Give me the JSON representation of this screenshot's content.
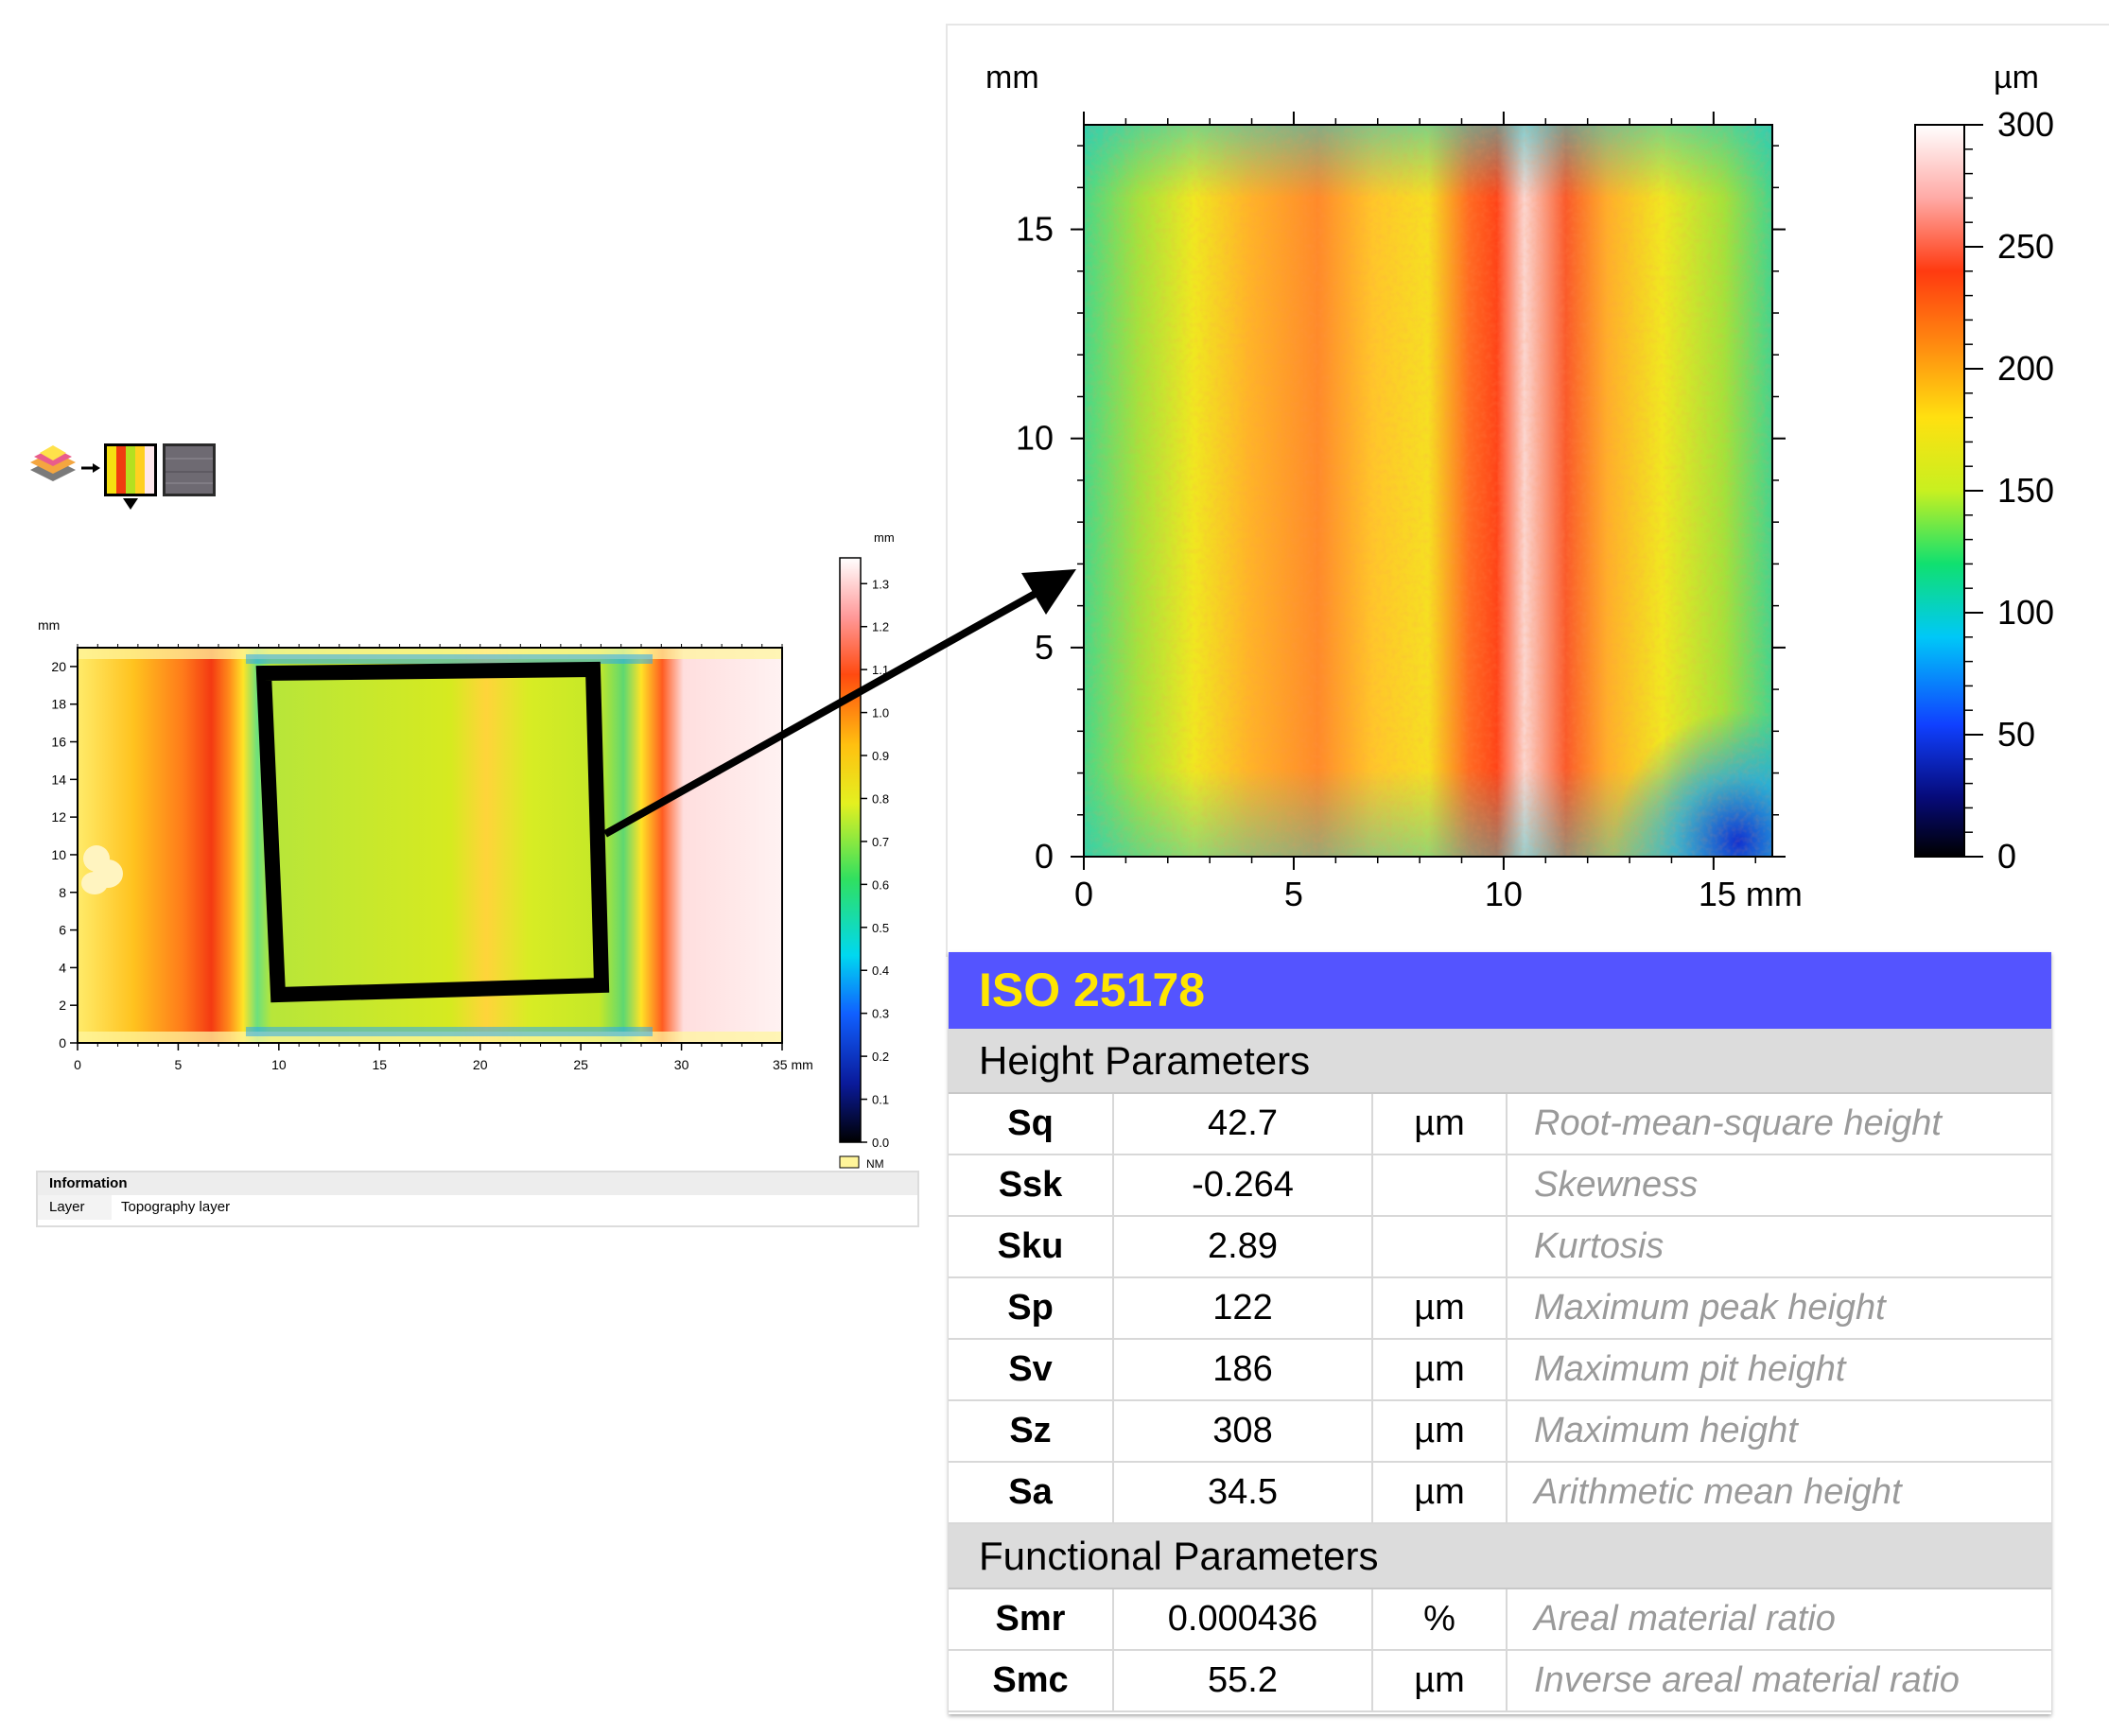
{
  "left_panel": {
    "y_unit": "mm",
    "x_ticks": [
      "0",
      "5",
      "10",
      "15",
      "20",
      "25",
      "30",
      "35 mm"
    ],
    "y_ticks": [
      "0",
      "2",
      "4",
      "6",
      "8",
      "10",
      "12",
      "14",
      "16",
      "18",
      "20"
    ],
    "colorbar": {
      "unit": "mm",
      "ticks": [
        "0.0",
        "0.1",
        "0.2",
        "0.3",
        "0.4",
        "0.5",
        "0.6",
        "0.7",
        "0.8",
        "0.9",
        "1.0",
        "1.1",
        "1.2",
        "1.3"
      ],
      "nm_label": "NM"
    },
    "info": {
      "title": "Information",
      "row_key": "Layer",
      "row_value": "Topography layer"
    },
    "toolbar_icons": [
      "layers-stack-icon",
      "arrow-right-icon",
      "colored-topography-icon",
      "grayscale-image-icon",
      "dropdown-caret-icon"
    ]
  },
  "main_plot": {
    "y_unit": "mm",
    "x_ticks": [
      "0",
      "5",
      "10",
      "15 mm"
    ],
    "y_ticks": [
      "0",
      "5",
      "10",
      "15"
    ],
    "colorbar": {
      "unit": "µm",
      "ticks": [
        "0",
        "50",
        "100",
        "150",
        "200",
        "250",
        "300"
      ]
    }
  },
  "iso_table": {
    "title": "ISO 25178",
    "height_section": "Height Parameters",
    "height_rows": [
      {
        "sym": "Sq",
        "val": "42.7",
        "unit": "µm",
        "desc": "Root-mean-square height"
      },
      {
        "sym": "Ssk",
        "val": "-0.264",
        "unit": "",
        "desc": "Skewness"
      },
      {
        "sym": "Sku",
        "val": "2.89",
        "unit": "",
        "desc": "Kurtosis"
      },
      {
        "sym": "Sp",
        "val": "122",
        "unit": "µm",
        "desc": "Maximum peak height"
      },
      {
        "sym": "Sv",
        "val": "186",
        "unit": "µm",
        "desc": "Maximum pit height"
      },
      {
        "sym": "Sz",
        "val": "308",
        "unit": "µm",
        "desc": "Maximum height"
      },
      {
        "sym": "Sa",
        "val": "34.5",
        "unit": "µm",
        "desc": "Arithmetic mean height"
      }
    ],
    "functional_section": "Functional Parameters",
    "functional_rows": [
      {
        "sym": "Smr",
        "val": "0.000436",
        "unit": "%",
        "desc": "Areal material ratio"
      },
      {
        "sym": "Smc",
        "val": "55.2",
        "unit": "µm",
        "desc": "Inverse areal material ratio"
      }
    ],
    "header_color": "#5454ff",
    "title_color": "#ffe600"
  }
}
